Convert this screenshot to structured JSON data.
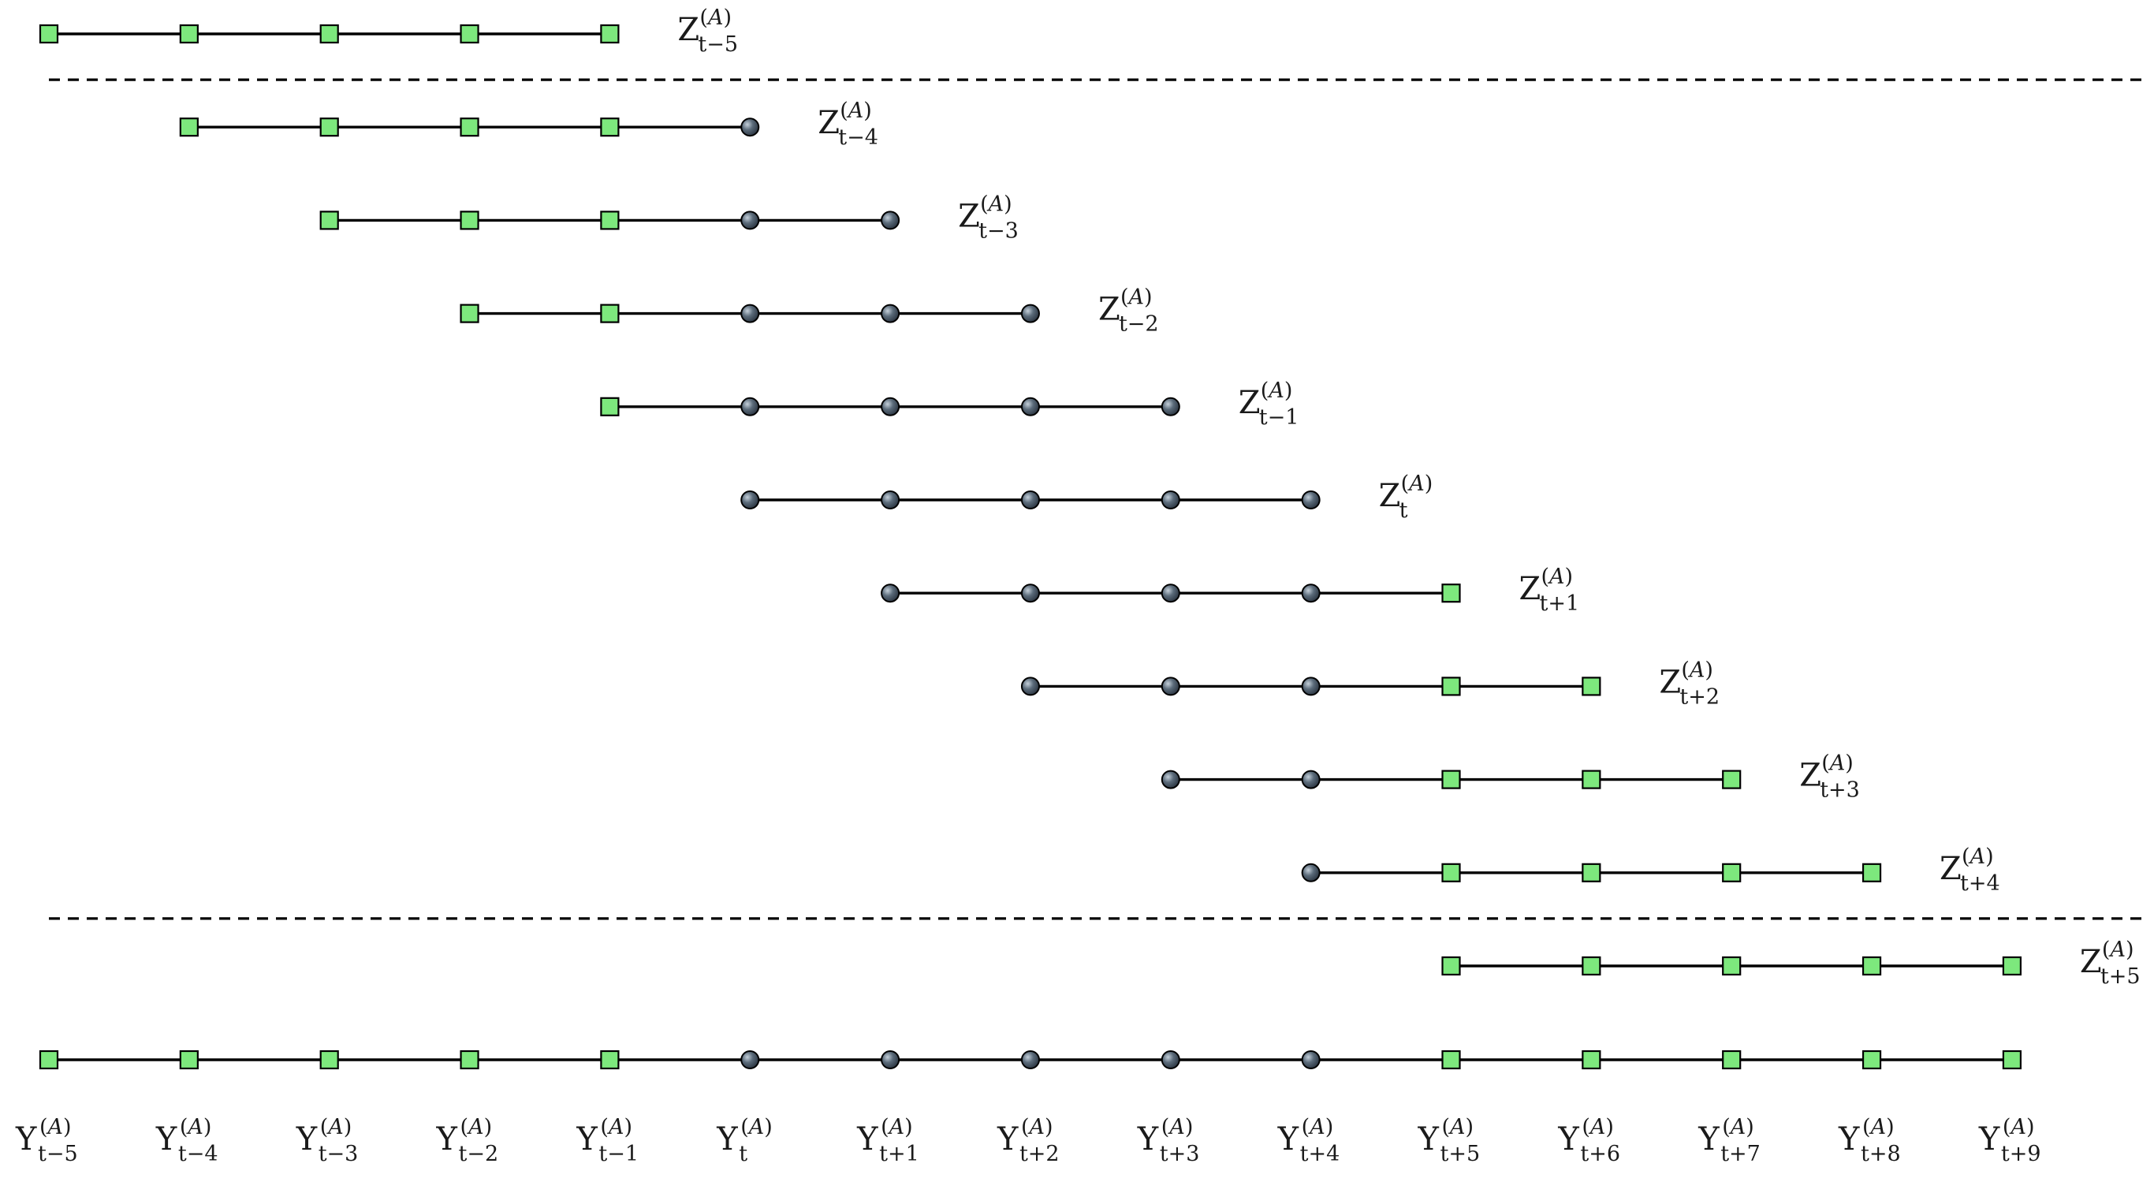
{
  "colors": {
    "observed_node": "#7de87d",
    "forecast_node": "#5b6b7a",
    "line": "#000000",
    "separator": "#000000"
  },
  "marker_names": {
    "square": "observed-node-icon",
    "circle": "forecast-node-icon"
  },
  "time_index": [
    "t−5",
    "t−4",
    "t−3",
    "t−2",
    "t−1",
    "t",
    "t+1",
    "t+2",
    "t+3",
    "t+4",
    "t+5",
    "t+6",
    "t+7",
    "t+8",
    "t+9"
  ],
  "rows": [
    {
      "symbol": "Z",
      "superscript": "(A)",
      "subscript": "t−5",
      "start": 0,
      "markers": [
        "square",
        "square",
        "square",
        "square",
        "square"
      ]
    },
    {
      "symbol": "Z",
      "superscript": "(A)",
      "subscript": "t−4",
      "start": 1,
      "markers": [
        "square",
        "square",
        "square",
        "square",
        "circle"
      ]
    },
    {
      "symbol": "Z",
      "superscript": "(A)",
      "subscript": "t−3",
      "start": 2,
      "markers": [
        "square",
        "square",
        "square",
        "circle",
        "circle"
      ]
    },
    {
      "symbol": "Z",
      "superscript": "(A)",
      "subscript": "t−2",
      "start": 3,
      "markers": [
        "square",
        "square",
        "circle",
        "circle",
        "circle"
      ]
    },
    {
      "symbol": "Z",
      "superscript": "(A)",
      "subscript": "t−1",
      "start": 4,
      "markers": [
        "square",
        "circle",
        "circle",
        "circle",
        "circle"
      ]
    },
    {
      "symbol": "Z",
      "superscript": "(A)",
      "subscript": "t",
      "start": 5,
      "markers": [
        "circle",
        "circle",
        "circle",
        "circle",
        "circle"
      ]
    },
    {
      "symbol": "Z",
      "superscript": "(A)",
      "subscript": "t+1",
      "start": 6,
      "markers": [
        "circle",
        "circle",
        "circle",
        "circle",
        "square"
      ]
    },
    {
      "symbol": "Z",
      "superscript": "(A)",
      "subscript": "t+2",
      "start": 7,
      "markers": [
        "circle",
        "circle",
        "circle",
        "square",
        "square"
      ]
    },
    {
      "symbol": "Z",
      "superscript": "(A)",
      "subscript": "t+3",
      "start": 8,
      "markers": [
        "circle",
        "circle",
        "square",
        "square",
        "square"
      ]
    },
    {
      "symbol": "Z",
      "superscript": "(A)",
      "subscript": "t+4",
      "start": 9,
      "markers": [
        "circle",
        "square",
        "square",
        "square",
        "square"
      ]
    },
    {
      "symbol": "Z",
      "superscript": "(A)",
      "subscript": "t+5",
      "start": 10,
      "markers": [
        "square",
        "square",
        "square",
        "square",
        "square"
      ]
    }
  ],
  "separators_after_rows": [
    0,
    9
  ],
  "bottom_series": {
    "symbol": "Y",
    "superscript": "(A)",
    "markers": [
      "square",
      "square",
      "square",
      "square",
      "square",
      "circle",
      "circle",
      "circle",
      "circle",
      "circle",
      "square",
      "square",
      "square",
      "square",
      "square"
    ]
  }
}
